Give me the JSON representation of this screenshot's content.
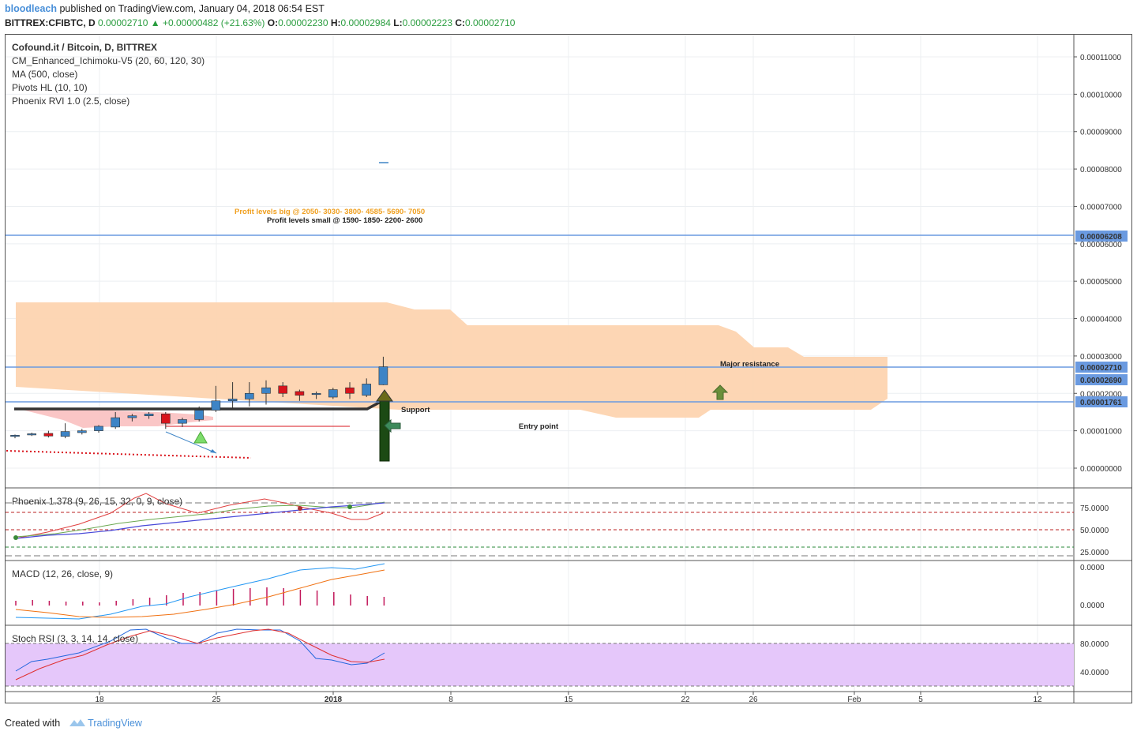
{
  "header": {
    "user": "bloodleach",
    "published": "published on TradingView.com, January 04, 2018 06:54 EST",
    "symbol": "BITTREX:CFIBTC, D",
    "price": "0.00002710",
    "change": "+0.00000482 (+21.63%)",
    "o_label": "O:",
    "o": "0.00002230",
    "h_label": "H:",
    "h": "0.00002984",
    "l_label": "L:",
    "l": "0.00002223",
    "c_label": "C:",
    "c": "0.00002710"
  },
  "legend": {
    "title": "Cofound.it / Bitcoin, D, BITTREX",
    "items": [
      "CM_Enhanced_Ichimoku-V5 (20, 60, 120, 30)",
      "MA (500, close)",
      "Pivots HL (10, 10)",
      "Phoenix RVI 1.0 (2.5, close)"
    ]
  },
  "annotations": {
    "profit_big": "Profit levels big @ 2050- 3030- 3800- 4585- 5690- 7050",
    "profit_small": "Profit levels small @ 1590- 1850- 2200- 2600",
    "major_resistance": "Major resistance",
    "support": "Support",
    "entry_point": "Entry point"
  },
  "price_axis": {
    "ticks": [
      "0.00011000",
      "0.00010000",
      "0.00009000",
      "0.00008000",
      "0.00007000",
      "0.00006000",
      "0.00005000",
      "0.00004000",
      "0.00003000",
      "0.00002000",
      "0.00001000",
      "0.00000000"
    ],
    "labels": [
      {
        "text": "0.00006208",
        "color": "#5b8ddb"
      },
      {
        "text": "0.00002710",
        "color": "#5b8ddb"
      },
      {
        "text": "0.00002690",
        "color": "#5b8ddb"
      },
      {
        "text": "0.00001761",
        "color": "#5b8ddb"
      }
    ]
  },
  "time_axis": {
    "ticks": [
      "18",
      "25",
      "2018",
      "8",
      "15",
      "22",
      "26",
      "Feb",
      "5",
      "12"
    ]
  },
  "panels": {
    "phoenix": {
      "title": "Phoenix 1.378 (9, 26, 15, 32, 0, 9, close)",
      "ticks": [
        "75.0000",
        "50.0000",
        "25.0000"
      ]
    },
    "macd": {
      "title": "MACD (12, 26, close, 9)",
      "ticks": [
        "0.0000",
        "0.0000"
      ]
    },
    "stoch": {
      "title": "Stoch RSI (3, 3, 14, 14, close)",
      "ticks": [
        "80.0000",
        "40.0000"
      ]
    }
  },
  "footer": {
    "created": "Created with",
    "brand": "TradingView"
  },
  "chart_data": {
    "type": "candlestick",
    "title": "Cofound.it / Bitcoin, D, BITTREX",
    "ylim": [
      0,
      0.000115
    ],
    "colors": {
      "up": "#3d84c6",
      "down": "#d9141c",
      "cloud": "#fdd4b0",
      "level": "#6a9ae0"
    },
    "horizontal_levels": [
      6.208e-05,
      2.71e-05,
      2.69e-05,
      1.761e-05
    ],
    "candles": [
      {
        "o": 8.5e-06,
        "h": 9e-06,
        "l": 8e-06,
        "c": 8.8e-06
      },
      {
        "o": 9e-06,
        "h": 9.5e-06,
        "l": 8.6e-06,
        "c": 9.2e-06
      },
      {
        "o": 9.3e-06,
        "h": 1e-05,
        "l": 8.2e-06,
        "c": 8.6e-06
      },
      {
        "o": 8.5e-06,
        "h": 1.2e-05,
        "l": 8e-06,
        "c": 9.8e-06
      },
      {
        "o": 9.5e-06,
        "h": 1.05e-05,
        "l": 9e-06,
        "c": 1e-05
      },
      {
        "o": 1e-05,
        "h": 1.15e-05,
        "l": 9.5e-06,
        "c": 1.12e-05
      },
      {
        "o": 1.1e-05,
        "h": 1.5e-05,
        "l": 1.05e-05,
        "c": 1.35e-05
      },
      {
        "o": 1.35e-05,
        "h": 1.45e-05,
        "l": 1.25e-05,
        "c": 1.4e-05
      },
      {
        "o": 1.4e-05,
        "h": 1.5e-05,
        "l": 1.32e-05,
        "c": 1.45e-05
      },
      {
        "o": 1.45e-05,
        "h": 1.5e-05,
        "l": 1.05e-05,
        "c": 1.2e-05
      },
      {
        "o": 1.2e-05,
        "h": 1.35e-05,
        "l": 1.1e-05,
        "c": 1.3e-05
      },
      {
        "o": 1.3e-05,
        "h": 1.65e-05,
        "l": 1.25e-05,
        "c": 1.55e-05
      },
      {
        "o": 1.55e-05,
        "h": 2.2e-05,
        "l": 1.5e-05,
        "c": 1.8e-05
      },
      {
        "o": 1.8e-05,
        "h": 2.3e-05,
        "l": 1.6e-05,
        "c": 1.85e-05
      },
      {
        "o": 1.85e-05,
        "h": 2.3e-05,
        "l": 1.65e-05,
        "c": 2e-05
      },
      {
        "o": 2e-05,
        "h": 2.35e-05,
        "l": 1.7e-05,
        "c": 2.15e-05
      },
      {
        "o": 2.2e-05,
        "h": 2.3e-05,
        "l": 1.9e-05,
        "c": 2e-05
      },
      {
        "o": 2.05e-05,
        "h": 2.1e-05,
        "l": 1.8e-05,
        "c": 1.95e-05
      },
      {
        "o": 1.97e-05,
        "h": 2.05e-05,
        "l": 1.85e-05,
        "c": 2e-05
      },
      {
        "o": 1.9e-05,
        "h": 2.15e-05,
        "l": 1.85e-05,
        "c": 2.1e-05
      },
      {
        "o": 2.15e-05,
        "h": 2.3e-05,
        "l": 1.85e-05,
        "c": 2e-05
      },
      {
        "o": 1.95e-05,
        "h": 2.4e-05,
        "l": 1.9e-05,
        "c": 2.25e-05
      },
      {
        "o": 2.23e-05,
        "h": 2.98e-05,
        "l": 2.22e-05,
        "c": 2.71e-05
      }
    ]
  }
}
